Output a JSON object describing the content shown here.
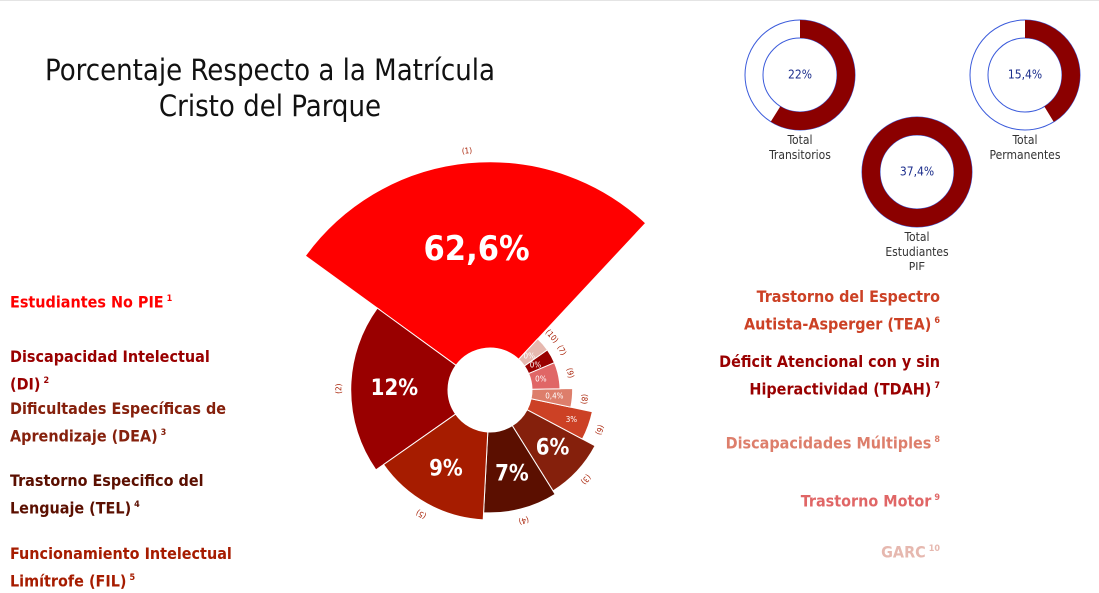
{
  "chart_data": {
    "type": "polar",
    "title": [
      "Porcentaje Respecto a la Matrícula",
      "Cristo del Parque"
    ],
    "series": [
      {
        "name": "Estudiantes No PIE",
        "sup": "1",
        "number_label": "(1)",
        "value": 62.6,
        "value_label": "62,6%",
        "color": "#ff0000"
      },
      {
        "name": "Discapacidad Intelectual (DI)",
        "sup": "2",
        "number_label": "(2)",
        "value": 12,
        "value_label": "12%",
        "color": "#990000"
      },
      {
        "name": "Dificultades Específicas de Aprendizaje (DEA)",
        "sup": "3",
        "number_label": "(3)",
        "value": 6,
        "value_label": "6%",
        "color": "#85200c"
      },
      {
        "name": "Trastorno Especifico del Lenguaje (TEL)",
        "sup": "4",
        "number_label": "(4)",
        "value": 7,
        "value_label": "7%",
        "color": "#5b0f00"
      },
      {
        "name": "Funcionamiento Intelectual Limítrofe (FIL)",
        "sup": "5",
        "number_label": "(5)",
        "value": 9,
        "value_label": "9%",
        "color": "#a61c00"
      },
      {
        "name": "Trastorno del Espectro Autista-Asperger (TEA)",
        "sup": "6",
        "number_label": "(6)",
        "value": 3,
        "value_label": "3%",
        "color": "#cc4125"
      },
      {
        "name": "Déficit Atencional con y sin Hiperactividad (TDAH)",
        "sup": "7",
        "number_label": "(7)",
        "value": 0,
        "value_label": "0%",
        "color": "#990000"
      },
      {
        "name": "Discapacidades Múltiples",
        "sup": "8",
        "number_label": "(8)",
        "value": 0.4,
        "value_label": "0,4%",
        "color": "#dd7e6b"
      },
      {
        "name": "Trastorno Motor",
        "sup": "9",
        "number_label": "(9)",
        "value": 0,
        "value_label": "0%",
        "color": "#e06666"
      },
      {
        "name": "GARC",
        "sup": "10",
        "number_label": "(10)",
        "value": 0,
        "value_label": "0%",
        "color": "#e6b8af"
      }
    ],
    "donuts": [
      {
        "name": "Total Transitorios",
        "value": 22,
        "value_label": "22%"
      },
      {
        "name": "Total Permanentes",
        "value": 15.4,
        "value_label": "15,4%"
      },
      {
        "name": "Total Estudiantes PIE",
        "value": 37.4,
        "value_label": "37,4%"
      }
    ]
  }
}
